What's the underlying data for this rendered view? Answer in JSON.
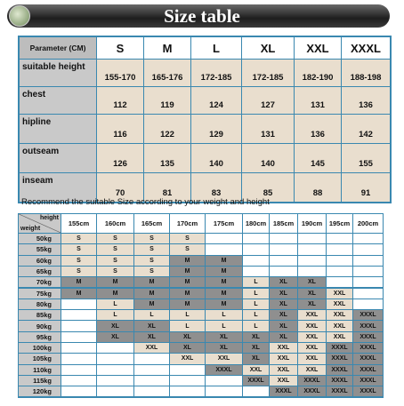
{
  "header": {
    "title": "Size table"
  },
  "size_table": {
    "corner": "Parameter (CM)",
    "sizes": [
      "S",
      "M",
      "L",
      "XL",
      "XXL",
      "XXXL"
    ],
    "rows": [
      {
        "label": "suitable height",
        "values": [
          "155-170",
          "165-176",
          "172-185",
          "172-185",
          "182-190",
          "188-198"
        ]
      },
      {
        "label": "chest",
        "values": [
          112,
          119,
          124,
          127,
          131,
          136
        ]
      },
      {
        "label": "hipline",
        "values": [
          116,
          122,
          129,
          131,
          136,
          142
        ]
      },
      {
        "label": "outseam",
        "values": [
          126,
          135,
          140,
          140,
          145,
          155
        ]
      },
      {
        "label": "inseam",
        "values": [
          70,
          81,
          83,
          85,
          88,
          91
        ]
      }
    ]
  },
  "note": "Recommend the suitable Size according to your weight and height",
  "recommend_table": {
    "corner_height": "height",
    "corner_weight": "weight",
    "heights": [
      "155cm",
      "160cm",
      "165cm",
      "170cm",
      "175cm",
      "180cm",
      "185cm",
      "190cm",
      "195cm",
      "200cm"
    ],
    "rows": [
      {
        "weight": "50kg",
        "cells": [
          "S",
          "S",
          "S",
          "S",
          null,
          null,
          null,
          null,
          null,
          null
        ]
      },
      {
        "weight": "55kg",
        "cells": [
          "S",
          "S",
          "S",
          "S",
          null,
          null,
          null,
          null,
          null,
          null
        ]
      },
      {
        "weight": "60kg",
        "cells": [
          "S",
          "S",
          "S",
          "M",
          "M",
          null,
          null,
          null,
          null,
          null
        ]
      },
      {
        "weight": "65kg",
        "cells": [
          "S",
          "S",
          "S",
          "M",
          "M",
          null,
          null,
          null,
          null,
          null
        ]
      },
      {
        "weight": "70kg",
        "cells": [
          "M",
          "M",
          "M",
          "M",
          "M",
          "L",
          "XL",
          "XL",
          null,
          null
        ]
      },
      {
        "weight": "75kg",
        "cells": [
          "M",
          "M",
          "M",
          "M",
          "M",
          "L",
          "XL",
          "XL",
          "XXL",
          null
        ]
      },
      {
        "weight": "80kg",
        "cells": [
          null,
          "L",
          "M",
          "M",
          "M",
          "L",
          "XL",
          "XL",
          "XXL",
          null
        ]
      },
      {
        "weight": "85kg",
        "cells": [
          null,
          "L",
          "L",
          "L",
          "L",
          "L",
          "XL",
          "XXL",
          "XXL",
          "XXXL"
        ]
      },
      {
        "weight": "90kg",
        "cells": [
          null,
          "XL",
          "XL",
          "L",
          "L",
          "L",
          "XL",
          "XXL",
          "XXL",
          "XXXL"
        ]
      },
      {
        "weight": "95kg",
        "cells": [
          null,
          "XL",
          "XL",
          "XL",
          "XL",
          "XL",
          "XL",
          "XXL",
          "XXL",
          "XXXL"
        ]
      },
      {
        "weight": "100kg",
        "cells": [
          null,
          null,
          "XXL",
          "XL",
          "XL",
          "XL",
          "XXL",
          "XXL",
          "XXXL",
          "XXXL"
        ]
      },
      {
        "weight": "105kg",
        "cells": [
          null,
          null,
          null,
          "XXL",
          "XXL",
          "XL",
          "XXL",
          "XXL",
          "XXXL",
          "XXXL"
        ]
      },
      {
        "weight": "110kg",
        "cells": [
          null,
          null,
          null,
          null,
          "XXXL",
          "XXL",
          "XXL",
          "XXL",
          "XXXL",
          "XXXL"
        ]
      },
      {
        "weight": "115kg",
        "cells": [
          null,
          null,
          null,
          null,
          null,
          "XXXL",
          "XXL",
          "XXXL",
          "XXXL",
          "XXXL"
        ]
      },
      {
        "weight": "120kg",
        "cells": [
          null,
          null,
          null,
          null,
          null,
          null,
          "XXXL",
          "XXXL",
          "XXXL",
          "XXXL"
        ]
      }
    ]
  }
}
